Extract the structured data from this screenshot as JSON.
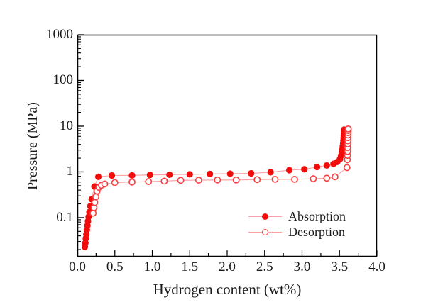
{
  "colors": {
    "marker": "#f20d0d",
    "line": "#fca0a0",
    "open_marker_stroke": "#f84040",
    "axis": "#000000",
    "text": "#1a1a1a",
    "background": "#ffffff"
  },
  "chart_data": {
    "type": "line",
    "title": "",
    "xlabel": "Hydrogen content (wt%)",
    "ylabel": "Pressure (MPa)",
    "x_scale": "linear",
    "y_scale": "log",
    "xlim": [
      0,
      4
    ],
    "ylim": [
      0.014,
      1000
    ],
    "x_ticks": {
      "values": [
        0,
        0.5,
        1,
        1.5,
        2,
        2.5,
        3,
        3.5,
        4
      ],
      "labels": [
        "0.0",
        "0.5",
        "1.0",
        "1.5",
        "2.0",
        "2.5",
        "3.0",
        "3.5",
        "4.0"
      ],
      "minor_step": 0.25
    },
    "y_ticks": {
      "values": [
        0.1,
        1,
        10,
        100,
        1000
      ],
      "labels": [
        "0.1",
        "1",
        "10",
        "100",
        "1000"
      ]
    },
    "grid": false,
    "legend_position": "inside-bottom-right",
    "series": [
      {
        "name": "Absorption",
        "marker": "filled-circle",
        "points": [
          [
            0.1,
            0.023
          ],
          [
            0.107,
            0.028
          ],
          [
            0.113,
            0.035
          ],
          [
            0.12,
            0.043
          ],
          [
            0.127,
            0.054
          ],
          [
            0.134,
            0.067
          ],
          [
            0.142,
            0.084
          ],
          [
            0.151,
            0.105
          ],
          [
            0.161,
            0.133
          ],
          [
            0.173,
            0.178
          ],
          [
            0.191,
            0.253
          ],
          [
            0.228,
            0.48
          ],
          [
            0.28,
            0.78
          ],
          [
            0.46,
            0.835
          ],
          [
            0.73,
            0.84
          ],
          [
            0.97,
            0.858
          ],
          [
            1.23,
            0.868
          ],
          [
            1.5,
            0.885
          ],
          [
            1.77,
            0.9
          ],
          [
            2.04,
            0.915
          ],
          [
            2.32,
            0.93
          ],
          [
            2.58,
            0.985
          ],
          [
            2.83,
            1.09
          ],
          [
            3.03,
            1.14
          ],
          [
            3.2,
            1.28
          ],
          [
            3.33,
            1.38
          ],
          [
            3.42,
            1.5
          ],
          [
            3.47,
            1.65
          ],
          [
            3.505,
            1.9
          ],
          [
            3.52,
            2.25
          ],
          [
            3.53,
            2.65
          ],
          [
            3.538,
            3.1
          ],
          [
            3.544,
            3.65
          ],
          [
            3.549,
            4.25
          ],
          [
            3.553,
            4.9
          ],
          [
            3.556,
            5.6
          ],
          [
            3.558,
            6.3
          ],
          [
            3.56,
            7.0
          ],
          [
            3.561,
            7.7
          ],
          [
            3.562,
            8.4
          ]
        ]
      },
      {
        "name": "Desorption",
        "marker": "open-circle",
        "points": [
          [
            0.21,
            0.125
          ],
          [
            0.222,
            0.165
          ],
          [
            0.233,
            0.215
          ],
          [
            0.247,
            0.285
          ],
          [
            0.263,
            0.38
          ],
          [
            0.287,
            0.46
          ],
          [
            0.32,
            0.51
          ],
          [
            0.365,
            0.545
          ],
          [
            0.5,
            0.585
          ],
          [
            0.73,
            0.6
          ],
          [
            0.95,
            0.615
          ],
          [
            1.16,
            0.63
          ],
          [
            1.38,
            0.655
          ],
          [
            1.62,
            0.66
          ],
          [
            1.87,
            0.668
          ],
          [
            2.12,
            0.668
          ],
          [
            2.4,
            0.678
          ],
          [
            2.64,
            0.69
          ],
          [
            2.9,
            0.688
          ],
          [
            3.15,
            0.71
          ],
          [
            3.33,
            0.73
          ],
          [
            3.44,
            0.78
          ],
          [
            3.6,
            1.24
          ],
          [
            3.605,
            1.85
          ],
          [
            3.607,
            2.3
          ],
          [
            3.609,
            2.8
          ],
          [
            3.61,
            3.4
          ],
          [
            3.611,
            4.1
          ],
          [
            3.612,
            4.8
          ],
          [
            3.613,
            5.6
          ],
          [
            3.614,
            6.4
          ],
          [
            3.615,
            7.2
          ],
          [
            3.616,
            8.0
          ],
          [
            3.617,
            8.7
          ]
        ]
      }
    ]
  }
}
